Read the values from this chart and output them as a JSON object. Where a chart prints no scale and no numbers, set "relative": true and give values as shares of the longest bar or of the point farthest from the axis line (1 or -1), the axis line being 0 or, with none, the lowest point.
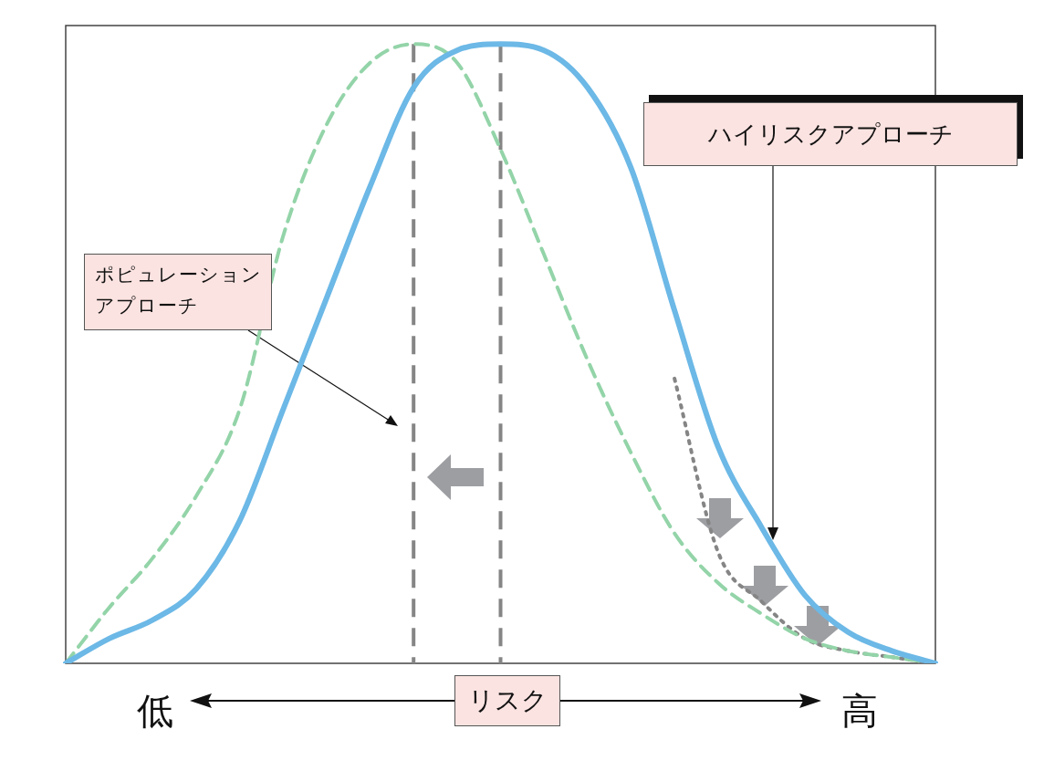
{
  "chart_data": {
    "type": "line",
    "relative": true,
    "xlabel": "リスク",
    "categories": [
      null,
      null,
      null,
      null,
      null,
      null,
      null,
      null,
      null,
      null,
      null,
      null,
      null,
      null,
      null,
      null,
      null,
      null,
      null,
      null,
      null
    ],
    "series": [
      {
        "color": "#6cb8e6",
        "line_style": "solid",
        "values": [
          0,
          0.04,
          0.07,
          0.12,
          0.23,
          0.41,
          0.59,
          0.77,
          0.93,
          0.99,
          1,
          0.99,
          0.93,
          0.8,
          0.57,
          0.35,
          0.22,
          0.11,
          0.05,
          0.02,
          0
        ]
      },
      {
        "color": "#93d4a8",
        "line_style": "dashed",
        "values": [
          0,
          0.09,
          0.17,
          0.27,
          0.41,
          0.69,
          0.87,
          0.97,
          1,
          0.97,
          0.83,
          0.66,
          0.49,
          0.34,
          0.21,
          0.13,
          0.08,
          0.04,
          0.02,
          0.01,
          0
        ]
      },
      {
        "color": "#858585",
        "line_style": "dotted",
        "values": [
          null,
          null,
          null,
          null,
          null,
          null,
          null,
          null,
          null,
          null,
          null,
          null,
          null,
          null,
          0.46,
          0.18,
          0.1,
          0.04,
          0.02,
          0.01,
          0
        ]
      }
    ],
    "annotations": [
      "ポピュレーションアプローチ",
      "ハイリスクアプローチ",
      "低",
      "高"
    ],
    "marker": "none",
    "grid": false,
    "legend": false
  }
}
